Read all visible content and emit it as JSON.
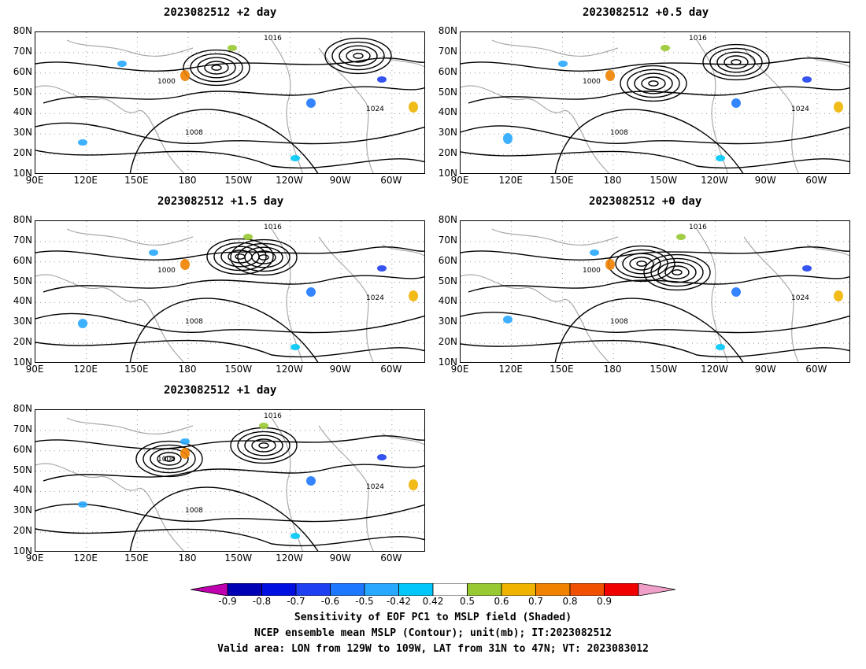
{
  "panels": [
    {
      "title": "2023082512  +2 day"
    },
    {
      "title": "2023082512  +0.5 day"
    },
    {
      "title": "2023082512  +1.5 day"
    },
    {
      "title": "2023082512  +0 day"
    },
    {
      "title": "2023082512  +1 day"
    }
  ],
  "lat_labels": [
    "80N",
    "70N",
    "60N",
    "50N",
    "40N",
    "30N",
    "20N",
    "10N"
  ],
  "lon_labels": [
    "90E",
    "120E",
    "150E",
    "180",
    "150W",
    "120W",
    "90W",
    "60W"
  ],
  "contour_labels": [
    "1016",
    "1008",
    "1000",
    "1024"
  ],
  "colorbar": {
    "labels": [
      "-0.9",
      "-0.8",
      "-0.7",
      "-0.6",
      "-0.5",
      "-0.42",
      "0.42",
      "0.5",
      "0.6",
      "0.7",
      "0.8",
      "0.9"
    ],
    "colors": [
      "#c000b0",
      "#0000b4",
      "#0010e0",
      "#1e40f0",
      "#1e78ff",
      "#28a8ff",
      "#00c8f8",
      "#ffffff",
      "#98c832",
      "#f0b400",
      "#f08200",
      "#f05000",
      "#f00000",
      "#f0a0c8"
    ]
  },
  "caption": {
    "line1": "Sensitivity of EOF PC1 to MSLP field (Shaded)",
    "line2": "NCEP ensemble mean MSLP (Contour); unit(mb); IT:2023082512",
    "line3": "Valid area: LON from 129W to 109W, LAT from 31N to 47N; VT: 2023083012"
  }
}
